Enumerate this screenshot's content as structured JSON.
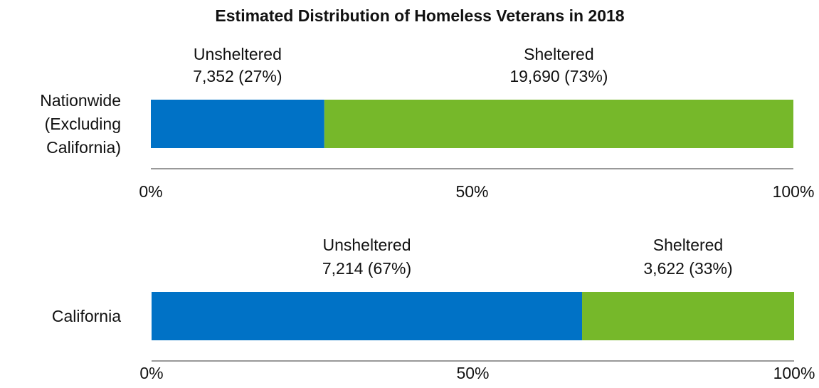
{
  "chart_data": {
    "type": "bar",
    "stacked": "100%",
    "orientation": "horizontal",
    "title": "Estimated Distribution of Homeless Veterans in 2018",
    "colors": {
      "unsheltered": "#0072c6",
      "sheltered": "#76b82a"
    },
    "xlim": [
      0,
      100
    ],
    "x_ticks": [
      "0%",
      "50%",
      "100%"
    ],
    "panels": [
      {
        "category_lines": [
          "Nationwide",
          "(Excluding",
          "California)"
        ],
        "segments": [
          {
            "name": "Unsheltered",
            "value_label": "7,352 (27%)",
            "count": 7352,
            "percent": 27,
            "color_key": "unsheltered"
          },
          {
            "name": "Sheltered",
            "value_label": "19,690 (73%)",
            "count": 19690,
            "percent": 73,
            "color_key": "sheltered"
          }
        ]
      },
      {
        "category_lines": [
          "California"
        ],
        "segments": [
          {
            "name": "Unsheltered",
            "value_label": "7,214 (67%)",
            "count": 7214,
            "percent": 67,
            "color_key": "unsheltered"
          },
          {
            "name": "Sheltered",
            "value_label": "3,622 (33%)",
            "count": 3622,
            "percent": 33,
            "color_key": "sheltered"
          }
        ]
      }
    ]
  }
}
